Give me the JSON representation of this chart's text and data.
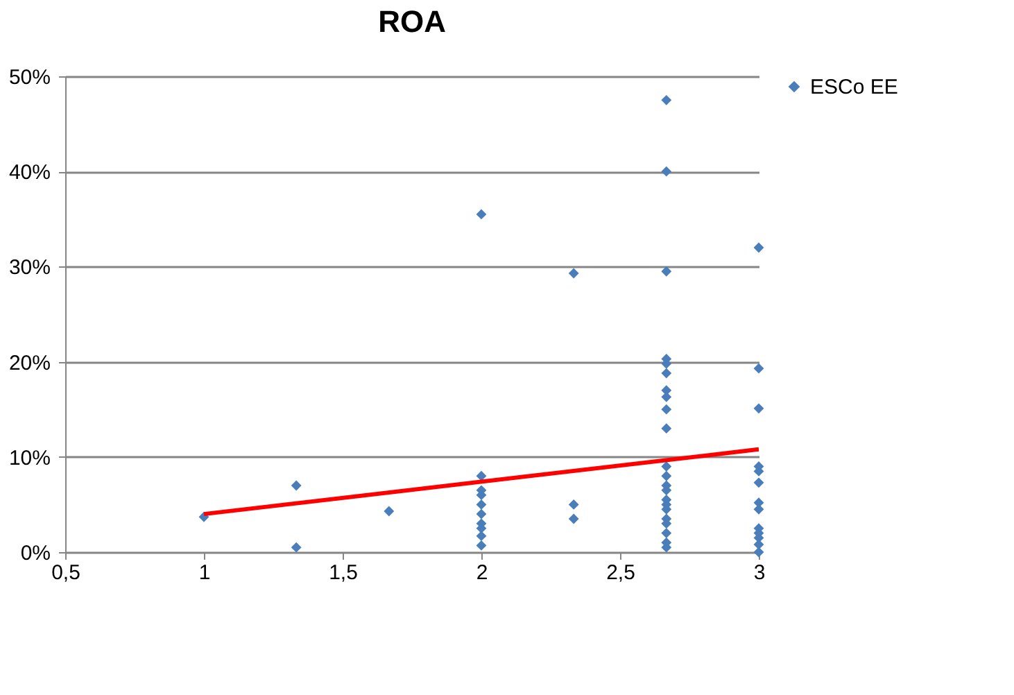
{
  "chart_data": {
    "type": "scatter",
    "title": "ROA",
    "series": [
      {
        "name": "ESCo EE",
        "color": "#4a7ebb",
        "marker": "diamond",
        "x": [
          1,
          1.333,
          1.333,
          1.667,
          2,
          2,
          2,
          2,
          2,
          2,
          2,
          2,
          2,
          2,
          2.333,
          2.333,
          2.333,
          2.667,
          2.667,
          2.667,
          2.667,
          2.667,
          2.667,
          2.667,
          2.667,
          2.667,
          2.667,
          2.667,
          2.667,
          2.667,
          2.667,
          2.667,
          2.667,
          2.667,
          2.667,
          2.667,
          2.667,
          2.667,
          2.667,
          3,
          3,
          3,
          3,
          3,
          3,
          3,
          3,
          3,
          3,
          3,
          3,
          3
        ],
        "values": [
          0.037,
          0.07,
          0.005,
          0.043,
          0.355,
          0.08,
          0.065,
          0.06,
          0.05,
          0.04,
          0.03,
          0.025,
          0.017,
          0.007,
          0.293,
          0.05,
          0.035,
          0.475,
          0.4,
          0.295,
          0.203,
          0.198,
          0.188,
          0.17,
          0.163,
          0.15,
          0.13,
          0.09,
          0.08,
          0.07,
          0.065,
          0.055,
          0.05,
          0.045,
          0.035,
          0.03,
          0.02,
          0.01,
          0.005,
          0.32,
          0.193,
          0.151,
          0.09,
          0.085,
          0.073,
          0.052,
          0.045,
          0.025,
          0.02,
          0.015,
          0.008,
          0.0
        ]
      },
      {
        "type": "line",
        "color": "#ff0000",
        "marker": "none",
        "x": [
          1,
          3
        ],
        "values": [
          0.04,
          0.108
        ]
      }
    ],
    "xlim": [
      0.5,
      3
    ],
    "xticks": [
      {
        "value": 0.5,
        "label": "0,5"
      },
      1,
      {
        "value": 1.5,
        "label": "1,5"
      },
      2,
      {
        "value": 2.5,
        "label": "2,5"
      },
      3
    ],
    "ylim": [
      0,
      0.5
    ],
    "yticks": [
      {
        "value": 0,
        "label": "0%"
      },
      {
        "value": 0.1,
        "label": "10%"
      },
      {
        "value": 0.2,
        "label": "20%"
      },
      {
        "value": 0.3,
        "label": "30%"
      },
      {
        "value": 0.4,
        "label": "40%"
      },
      {
        "value": 0.5,
        "label": "50%"
      }
    ],
    "grid": "y",
    "legend": "right"
  }
}
